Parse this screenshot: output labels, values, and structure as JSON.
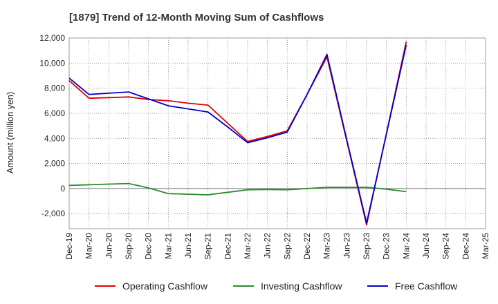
{
  "chart_data": {
    "type": "line",
    "title": "[1879]  Trend of 12-Month Moving Sum of Cashflows",
    "xlabel": "",
    "ylabel": "Amount (million yen)",
    "ylim": [
      -3200,
      12000
    ],
    "yticks": [
      -2000,
      0,
      2000,
      4000,
      6000,
      8000,
      10000,
      12000
    ],
    "ytick_labels": [
      "-2,000",
      "0",
      "2,000",
      "4,000",
      "6,000",
      "8,000",
      "10,000",
      "12,000"
    ],
    "categories": [
      "Dec-19",
      "Mar-20",
      "Jun-20",
      "Sep-20",
      "Dec-20",
      "Mar-21",
      "Jun-21",
      "Sep-21",
      "Dec-21",
      "Mar-22",
      "Jun-22",
      "Sep-22",
      "Dec-22",
      "Mar-23",
      "Jun-23",
      "Sep-23",
      "Dec-23",
      "Mar-24",
      "Jun-24",
      "Sep-24",
      "Dec-24",
      "Mar-25"
    ],
    "grid": true,
    "legend_position": "bottom",
    "series": [
      {
        "name": "Operating Cashflow",
        "color": "#e00000",
        "values": [
          8600,
          7200,
          7250,
          7300,
          7100,
          7000,
          6800,
          6650,
          5200,
          3750,
          4150,
          4600,
          7500,
          10500,
          3800,
          -2900,
          4400,
          11700,
          null,
          null,
          null,
          null
        ]
      },
      {
        "name": "Investing Cashflow",
        "color": "#2a8a2a",
        "values": [
          250,
          300,
          350,
          400,
          50,
          -400,
          -450,
          -500,
          -300,
          -100,
          -80,
          -100,
          0,
          100,
          100,
          100,
          -50,
          -250,
          null,
          null,
          null,
          null
        ]
      },
      {
        "name": "Free Cashflow",
        "color": "#0000cc",
        "values": [
          8800,
          7500,
          7600,
          7700,
          7150,
          6600,
          6350,
          6100,
          4900,
          3650,
          4050,
          4500,
          7500,
          10700,
          3900,
          -2750,
          4350,
          11450,
          null,
          null,
          null,
          null
        ]
      }
    ]
  }
}
